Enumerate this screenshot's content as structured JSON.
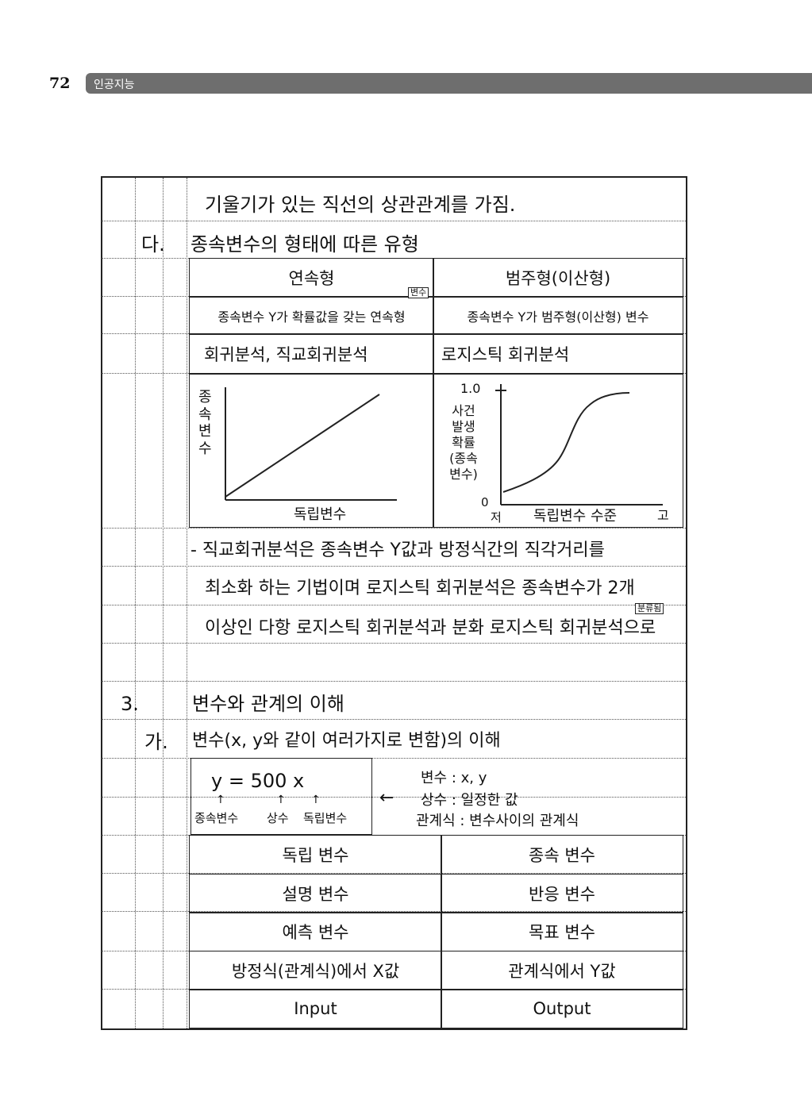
{
  "header": {
    "page_number": "72",
    "book_title": "인공지능"
  },
  "lines": {
    "line1": "기울기가 있는 직선의 상관관계를 가짐.",
    "section_da_marker": "다.",
    "section_da_title": "종속변수의 형태에 따른 유형"
  },
  "type_table": {
    "headers": [
      "연속형",
      "범주형(이산형)"
    ],
    "rows": [
      [
        "종속변수 Y가 확률값을 갖는 연속형",
        "종속변수 Y가 범주형(이산형) 변수"
      ],
      [
        "회귀분석, 직교회귀분석",
        "로지스틱 회귀분석"
      ]
    ],
    "insert_note": "변수",
    "linear_chart": {
      "ylabel": "종속변수",
      "xlabel": "독립변수"
    },
    "logistic_chart": {
      "ylabel": "사건 발생 확률 (종속 변수)",
      "ytick_top": "1.0",
      "ytick_bottom": "0",
      "ytick_bottom_word": "저",
      "xlabel": "독립변수 수준",
      "x_high": "고"
    }
  },
  "paragraph": [
    "- 직교회귀분석은 종속변수 Y값과 방정식간의 직각거리를",
    "최소화 하는 기법이며 로지스틱 회귀분석은 종속변수가 2개",
    "이상인 다항 로지스틱 회귀분석과 분화 로지스틱 회귀분석으로"
  ],
  "paragraph_note": "분류됨",
  "section3": {
    "marker": "3.",
    "title": "변수와 관계의 이해"
  },
  "section_ga": {
    "marker": "가.",
    "title": "변수(x, y와 같이 여러가지로 변함)의 이해"
  },
  "equation": {
    "formula": "y = 500 x",
    "labels": [
      "종속변수",
      "상수",
      "독립변수"
    ],
    "arrow": "←"
  },
  "definitions": [
    "변수 : x, y",
    "상수 : 일정한 값",
    "관계식 : 변수사이의 관계식"
  ],
  "var_table": [
    [
      "독립 변수",
      "종속 변수"
    ],
    [
      "설명 변수",
      "반응 변수"
    ],
    [
      "예측 변수",
      "목표 변수"
    ],
    [
      "방정식(관계식)에서 X값",
      "관계식에서 Y값"
    ],
    [
      "Input",
      "Output"
    ]
  ]
}
